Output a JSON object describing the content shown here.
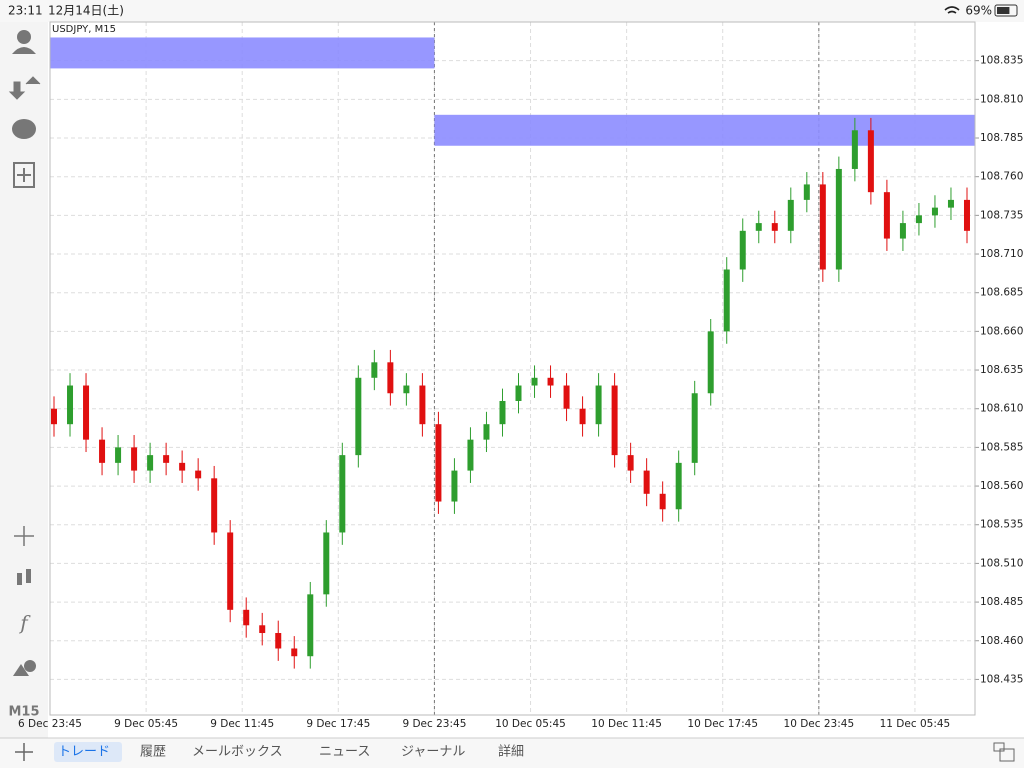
{
  "status_bar": {
    "time": "23:11",
    "date": "12月14日(土)",
    "battery": {
      "value": 69,
      "label": "69%"
    }
  },
  "toolbar": {
    "timeframe": "M15"
  },
  "chart_data": {
    "type": "candlestick",
    "title": "USDJPY, M15",
    "bull_color": "#2e9e2e",
    "bear_color": "#e01010",
    "grid": true,
    "xlim": [
      0,
      231
    ],
    "ylim": [
      108.412,
      108.86
    ],
    "xticks": [
      {
        "value": 0,
        "label": "6 Dec 23:45"
      },
      {
        "value": 24,
        "label": "9 Dec 05:45"
      },
      {
        "value": 48,
        "label": "9 Dec 11:45"
      },
      {
        "value": 72,
        "label": "9 Dec 17:45"
      },
      {
        "value": 96,
        "label": "9 Dec 23:45"
      },
      {
        "value": 120,
        "label": "10 Dec 05:45"
      },
      {
        "value": 144,
        "label": "10 Dec 11:45"
      },
      {
        "value": 168,
        "label": "10 Dec 17:45"
      },
      {
        "value": 192,
        "label": "10 Dec 23:45"
      },
      {
        "value": 216,
        "label": "11 Dec 05:45"
      }
    ],
    "yticks": [
      108.835,
      {
        "value": 108.81,
        "label": "108.810"
      },
      108.785,
      {
        "value": 108.76,
        "label": "108.760"
      },
      108.735,
      {
        "value": 108.71,
        "label": "108.710"
      },
      108.685,
      {
        "value": 108.66,
        "label": "108.660"
      },
      108.635,
      {
        "value": 108.61,
        "label": "108.610"
      },
      108.585,
      {
        "value": 108.56,
        "label": "108.560"
      },
      108.535,
      {
        "value": 108.51,
        "label": "108.510"
      },
      108.485,
      {
        "value": 108.46,
        "label": "108.460"
      },
      108.435
    ],
    "period_separators": [
      96,
      192
    ],
    "rectangles": [
      {
        "x_start": 0,
        "x_end": 96,
        "top": 108.85,
        "bottom": 108.83,
        "color": "#8c8cff"
      },
      {
        "x_start": 96,
        "x_end": 231,
        "top": 108.8,
        "bottom": 108.78,
        "color": "#8c8cff"
      }
    ],
    "x": [
      0,
      4,
      8,
      12,
      16,
      20,
      24,
      28,
      32,
      36,
      40,
      44,
      48,
      52,
      56,
      60,
      64,
      68,
      72,
      76,
      80,
      84,
      88,
      92,
      96,
      100,
      104,
      108,
      112,
      116,
      120,
      124,
      128,
      132,
      136,
      140,
      144,
      148,
      152,
      156,
      160,
      164,
      168,
      172,
      176,
      180,
      184,
      188,
      192,
      196,
      200,
      204,
      208,
      212,
      216,
      220,
      224,
      228
    ],
    "open": [
      108.61,
      108.6,
      108.625,
      108.59,
      108.575,
      108.585,
      108.57,
      108.58,
      108.575,
      108.57,
      108.565,
      108.53,
      108.48,
      108.47,
      108.465,
      108.455,
      108.45,
      108.49,
      108.53,
      108.58,
      108.63,
      108.64,
      108.62,
      108.625,
      108.6,
      108.55,
      108.57,
      108.59,
      108.6,
      108.615,
      108.625,
      108.63,
      108.625,
      108.61,
      108.6,
      108.625,
      108.58,
      108.57,
      108.555,
      108.545,
      108.575,
      108.62,
      108.66,
      108.7,
      108.725,
      108.73,
      108.725,
      108.745,
      108.755,
      108.7,
      108.765,
      108.79,
      108.75,
      108.72,
      108.73,
      108.735,
      108.74,
      108.745
    ],
    "high": [
      108.618,
      108.633,
      108.633,
      108.598,
      108.593,
      108.593,
      108.588,
      108.588,
      108.583,
      108.578,
      108.573,
      108.538,
      108.488,
      108.478,
      108.473,
      108.463,
      108.498,
      108.538,
      108.588,
      108.638,
      108.648,
      108.648,
      108.633,
      108.633,
      108.608,
      108.578,
      108.598,
      108.608,
      108.623,
      108.633,
      108.638,
      108.638,
      108.633,
      108.618,
      108.633,
      108.633,
      108.588,
      108.578,
      108.563,
      108.583,
      108.628,
      108.668,
      108.708,
      108.733,
      108.738,
      108.738,
      108.753,
      108.763,
      108.763,
      108.773,
      108.798,
      108.798,
      108.758,
      108.738,
      108.743,
      108.748,
      108.753,
      108.753
    ],
    "low": [
      108.592,
      108.592,
      108.582,
      108.567,
      108.567,
      108.562,
      108.562,
      108.567,
      108.562,
      108.557,
      108.522,
      108.472,
      108.462,
      108.457,
      108.447,
      108.442,
      108.442,
      108.482,
      108.522,
      108.572,
      108.622,
      108.612,
      108.612,
      108.592,
      108.542,
      108.542,
      108.562,
      108.582,
      108.592,
      108.607,
      108.617,
      108.617,
      108.602,
      108.592,
      108.592,
      108.572,
      108.562,
      108.547,
      108.537,
      108.537,
      108.567,
      108.612,
      108.652,
      108.692,
      108.717,
      108.717,
      108.717,
      108.737,
      108.692,
      108.692,
      108.757,
      108.742,
      108.712,
      108.712,
      108.722,
      108.727,
      108.732,
      108.717
    ],
    "close": [
      108.6,
      108.625,
      108.59,
      108.575,
      108.585,
      108.57,
      108.58,
      108.575,
      108.57,
      108.565,
      108.53,
      108.48,
      108.47,
      108.465,
      108.455,
      108.45,
      108.49,
      108.53,
      108.58,
      108.63,
      108.64,
      108.62,
      108.625,
      108.6,
      108.55,
      108.57,
      108.59,
      108.6,
      108.615,
      108.625,
      108.63,
      108.625,
      108.61,
      108.6,
      108.625,
      108.58,
      108.57,
      108.555,
      108.545,
      108.575,
      108.62,
      108.66,
      108.7,
      108.725,
      108.73,
      108.725,
      108.745,
      108.755,
      108.7,
      108.765,
      108.79,
      108.75,
      108.72,
      108.73,
      108.735,
      108.74,
      108.745,
      108.725
    ]
  },
  "tabs": [
    "トレード",
    "履歴",
    "メールボックス",
    "ニュース",
    "ジャーナル",
    "詳細"
  ]
}
